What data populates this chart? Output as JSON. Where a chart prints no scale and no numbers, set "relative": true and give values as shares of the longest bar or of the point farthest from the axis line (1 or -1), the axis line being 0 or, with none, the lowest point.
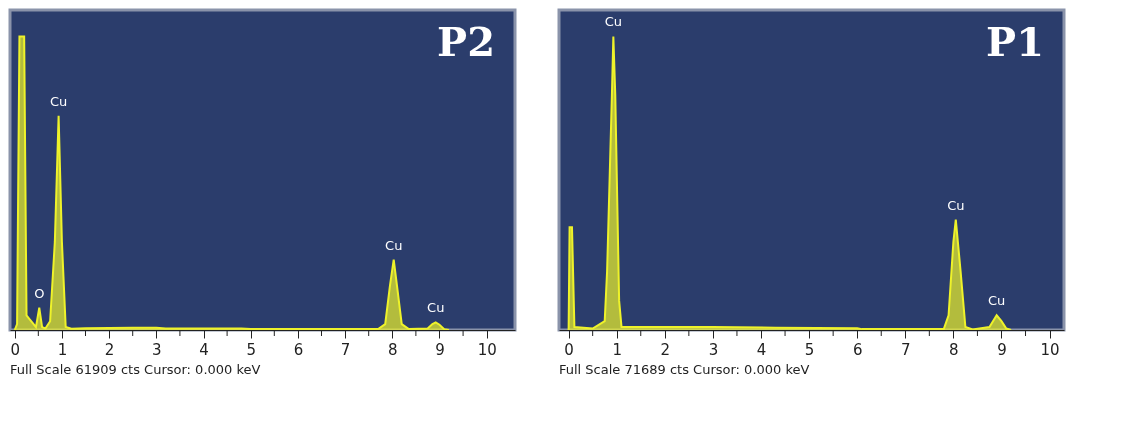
{
  "chart_data": [
    {
      "type": "area",
      "title": "P2",
      "relative": true,
      "xlim": [
        -0.1,
        10.6
      ],
      "xticks": [
        0,
        {
          "value": 0.5,
          "label": null
        },
        1,
        {
          "value": 1.5,
          "label": null
        },
        2,
        {
          "value": 2.5,
          "label": null
        },
        3,
        {
          "value": 3.5,
          "label": null
        },
        4,
        {
          "value": 4.5,
          "label": null
        },
        5,
        {
          "value": 5.5,
          "label": null
        },
        6,
        {
          "value": 6.5,
          "label": null
        },
        7,
        {
          "value": 7.5,
          "label": null
        },
        8,
        {
          "value": 8.5,
          "label": null
        },
        9,
        {
          "value": 9.5,
          "label": null
        },
        10
      ],
      "x": [
        0,
        0.05,
        0.1,
        0.15,
        0.2,
        0.25,
        0.3,
        0.4,
        0.45,
        0.52,
        0.58,
        0.65,
        0.75,
        0.85,
        0.93,
        1.0,
        1.08,
        1.2,
        1.5,
        2.5,
        3.0,
        3.2,
        4.8,
        5.0,
        7.7,
        7.85,
        7.95,
        8.03,
        8.1,
        8.2,
        8.35,
        8.75,
        8.85,
        8.92,
        9.0,
        9.1,
        9.2
      ],
      "series": [
        {
          "color": "#eef22a",
          "values": [
            0,
            0.02,
            1,
            1,
            1,
            0.05,
            0.04,
            0.02,
            0.01,
            0.076,
            0.01,
            0.005,
            0.03,
            0.3,
            0.73,
            0.3,
            0.01,
            0.004,
            0.006,
            0.008,
            0.008,
            0.005,
            0.005,
            0.003,
            0.003,
            0.02,
            0.15,
            0.24,
            0.15,
            0.02,
            0.003,
            0.005,
            0.02,
            0.026,
            0.018,
            0.003,
            0
          ]
        }
      ],
      "annotations": [
        {
          "text": "O",
          "x": 0.52,
          "y": 0.076
        },
        {
          "text": "Cu",
          "x": 0.93,
          "y": 0.73
        },
        {
          "text": "Cu",
          "x": 8.03,
          "y": 0.24
        },
        {
          "text": "Cu",
          "x": 8.92,
          "y": 0.026
        },
        "Full Scale 61909 cts   Cursor: 0.000 keV"
      ]
    },
    {
      "type": "area",
      "title": "P1",
      "relative": true,
      "xlim": [
        -0.2,
        10.3
      ],
      "xticks": [
        0,
        {
          "value": 0.5,
          "label": null
        },
        1,
        {
          "value": 1.5,
          "label": null
        },
        2,
        {
          "value": 2.5,
          "label": null
        },
        3,
        {
          "value": 3.5,
          "label": null
        },
        4,
        {
          "value": 4.5,
          "label": null
        },
        5,
        {
          "value": 5.5,
          "label": null
        },
        6,
        {
          "value": 6.5,
          "label": null
        },
        7,
        {
          "value": 7.5,
          "label": null
        },
        8,
        {
          "value": 8.5,
          "label": null
        },
        9,
        {
          "value": 9.5,
          "label": null
        },
        10
      ],
      "x": [
        0,
        0.02,
        0.07,
        0.12,
        0.5,
        0.75,
        0.8,
        0.9,
        0.93,
        0.97,
        1.05,
        1.1,
        1.5,
        3.0,
        4.3,
        6.0,
        6.1,
        7.8,
        7.9,
        8.0,
        8.05,
        8.15,
        8.25,
        8.4,
        8.75,
        8.9,
        9.0,
        9.1,
        9.2
      ],
      "series": [
        {
          "color": "#eef22a",
          "values": [
            0,
            0.35,
            0.35,
            0.01,
            0.005,
            0.03,
            0.2,
            0.8,
            1,
            0.8,
            0.1,
            0.01,
            0.01,
            0.01,
            0.008,
            0.006,
            0.003,
            0.003,
            0.05,
            0.3,
            0.376,
            0.2,
            0.01,
            0.002,
            0.01,
            0.05,
            0.03,
            0.005,
            0
          ]
        }
      ],
      "annotations": [
        {
          "text": "Cu",
          "x": 0.93,
          "y": 1
        },
        {
          "text": "Cu",
          "x": 8.05,
          "y": 0.376
        },
        {
          "text": "Cu",
          "x": 8.9,
          "y": 0.05
        },
        "Full Scale 71689 cts   Cursor: 0.000 keV"
      ]
    }
  ]
}
